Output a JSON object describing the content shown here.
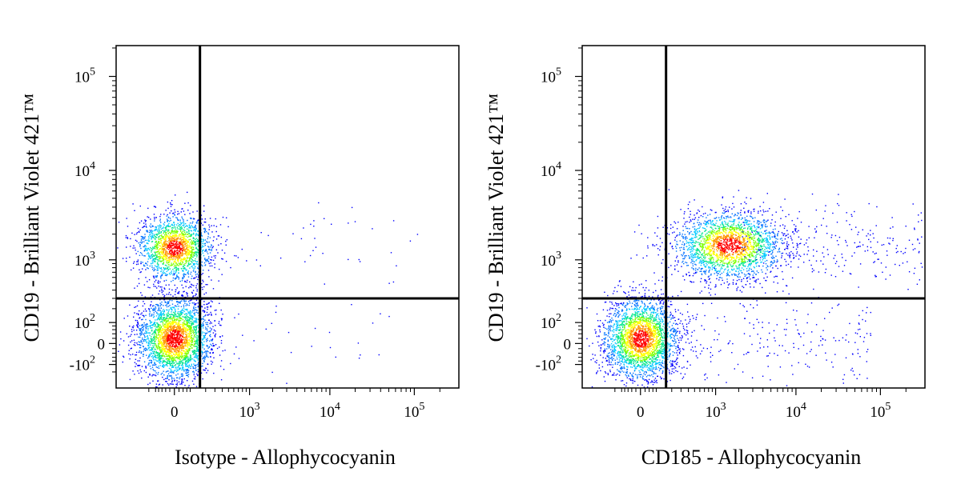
{
  "chart_data": [
    {
      "type": "scatter",
      "subtype": "flow-cytometry-density-dot-plot",
      "xlabel": "Isotype - Allophycocyanin",
      "ylabel": "CD19 - Brilliant Violet 421™",
      "x_scale": "biexponential",
      "y_scale": "biexponential",
      "x_ticks": [
        {
          "value": 0,
          "base": "0",
          "exp": ""
        },
        {
          "value": 1000,
          "base": "10",
          "exp": "3"
        },
        {
          "value": 10000,
          "base": "10",
          "exp": "4"
        },
        {
          "value": 100000,
          "base": "10",
          "exp": "5"
        }
      ],
      "y_ticks": [
        {
          "value": -100,
          "base": "-10",
          "exp": "2"
        },
        {
          "value": 0,
          "base": "0",
          "exp": ""
        },
        {
          "value": 100,
          "base": "10",
          "exp": "2"
        },
        {
          "value": 1000,
          "base": "10",
          "exp": "3"
        },
        {
          "value": 10000,
          "base": "10",
          "exp": "4"
        },
        {
          "value": 100000,
          "base": "10",
          "exp": "5"
        }
      ],
      "xlim": [
        -200,
        200000
      ],
      "ylim": [
        -150,
        250000
      ],
      "quadrant_gate": {
        "x": 150,
        "y": 300
      },
      "populations": [
        {
          "center_x": 0,
          "center_y": 1400,
          "events": 1800
        },
        {
          "center_x": 0,
          "center_y": 20,
          "events": 2800
        },
        {
          "center_x": 3000,
          "center_y": 1500,
          "events": 35
        },
        {
          "center_x": 2000,
          "center_y": 20,
          "events": 30
        }
      ],
      "colors": {
        "low": "#0000ff",
        "mid": "#00c8ff",
        "mid2": "#00ff00",
        "high": "#ffff00",
        "peak": "#ff0000"
      }
    },
    {
      "type": "scatter",
      "subtype": "flow-cytometry-density-dot-plot",
      "xlabel": "CD185 - Allophycocyanin",
      "ylabel": "CD19 - Brilliant Violet 421™",
      "x_scale": "biexponential",
      "y_scale": "biexponential",
      "x_ticks": [
        {
          "value": 0,
          "base": "0",
          "exp": ""
        },
        {
          "value": 1000,
          "base": "10",
          "exp": "3"
        },
        {
          "value": 10000,
          "base": "10",
          "exp": "4"
        },
        {
          "value": 100000,
          "base": "10",
          "exp": "5"
        }
      ],
      "y_ticks": [
        {
          "value": -100,
          "base": "-10",
          "exp": "2"
        },
        {
          "value": 0,
          "base": "0",
          "exp": ""
        },
        {
          "value": 100,
          "base": "10",
          "exp": "2"
        },
        {
          "value": 1000,
          "base": "10",
          "exp": "3"
        },
        {
          "value": 10000,
          "base": "10",
          "exp": "4"
        },
        {
          "value": 100000,
          "base": "10",
          "exp": "5"
        }
      ],
      "xlim": [
        -200,
        200000
      ],
      "ylim": [
        -150,
        250000
      ],
      "quadrant_gate": {
        "x": 150,
        "y": 300
      },
      "populations": [
        {
          "center_x": 1500,
          "center_y": 1500,
          "events": 2200
        },
        {
          "center_x": 10000,
          "center_y": 1500,
          "events": 250
        },
        {
          "center_x": 0,
          "center_y": 20,
          "events": 2600
        },
        {
          "center_x": 2000,
          "center_y": 20,
          "events": 220
        }
      ],
      "colors": {
        "low": "#0000ff",
        "mid": "#00c8ff",
        "mid2": "#00ff00",
        "high": "#ffff00",
        "peak": "#ff0000"
      }
    }
  ]
}
